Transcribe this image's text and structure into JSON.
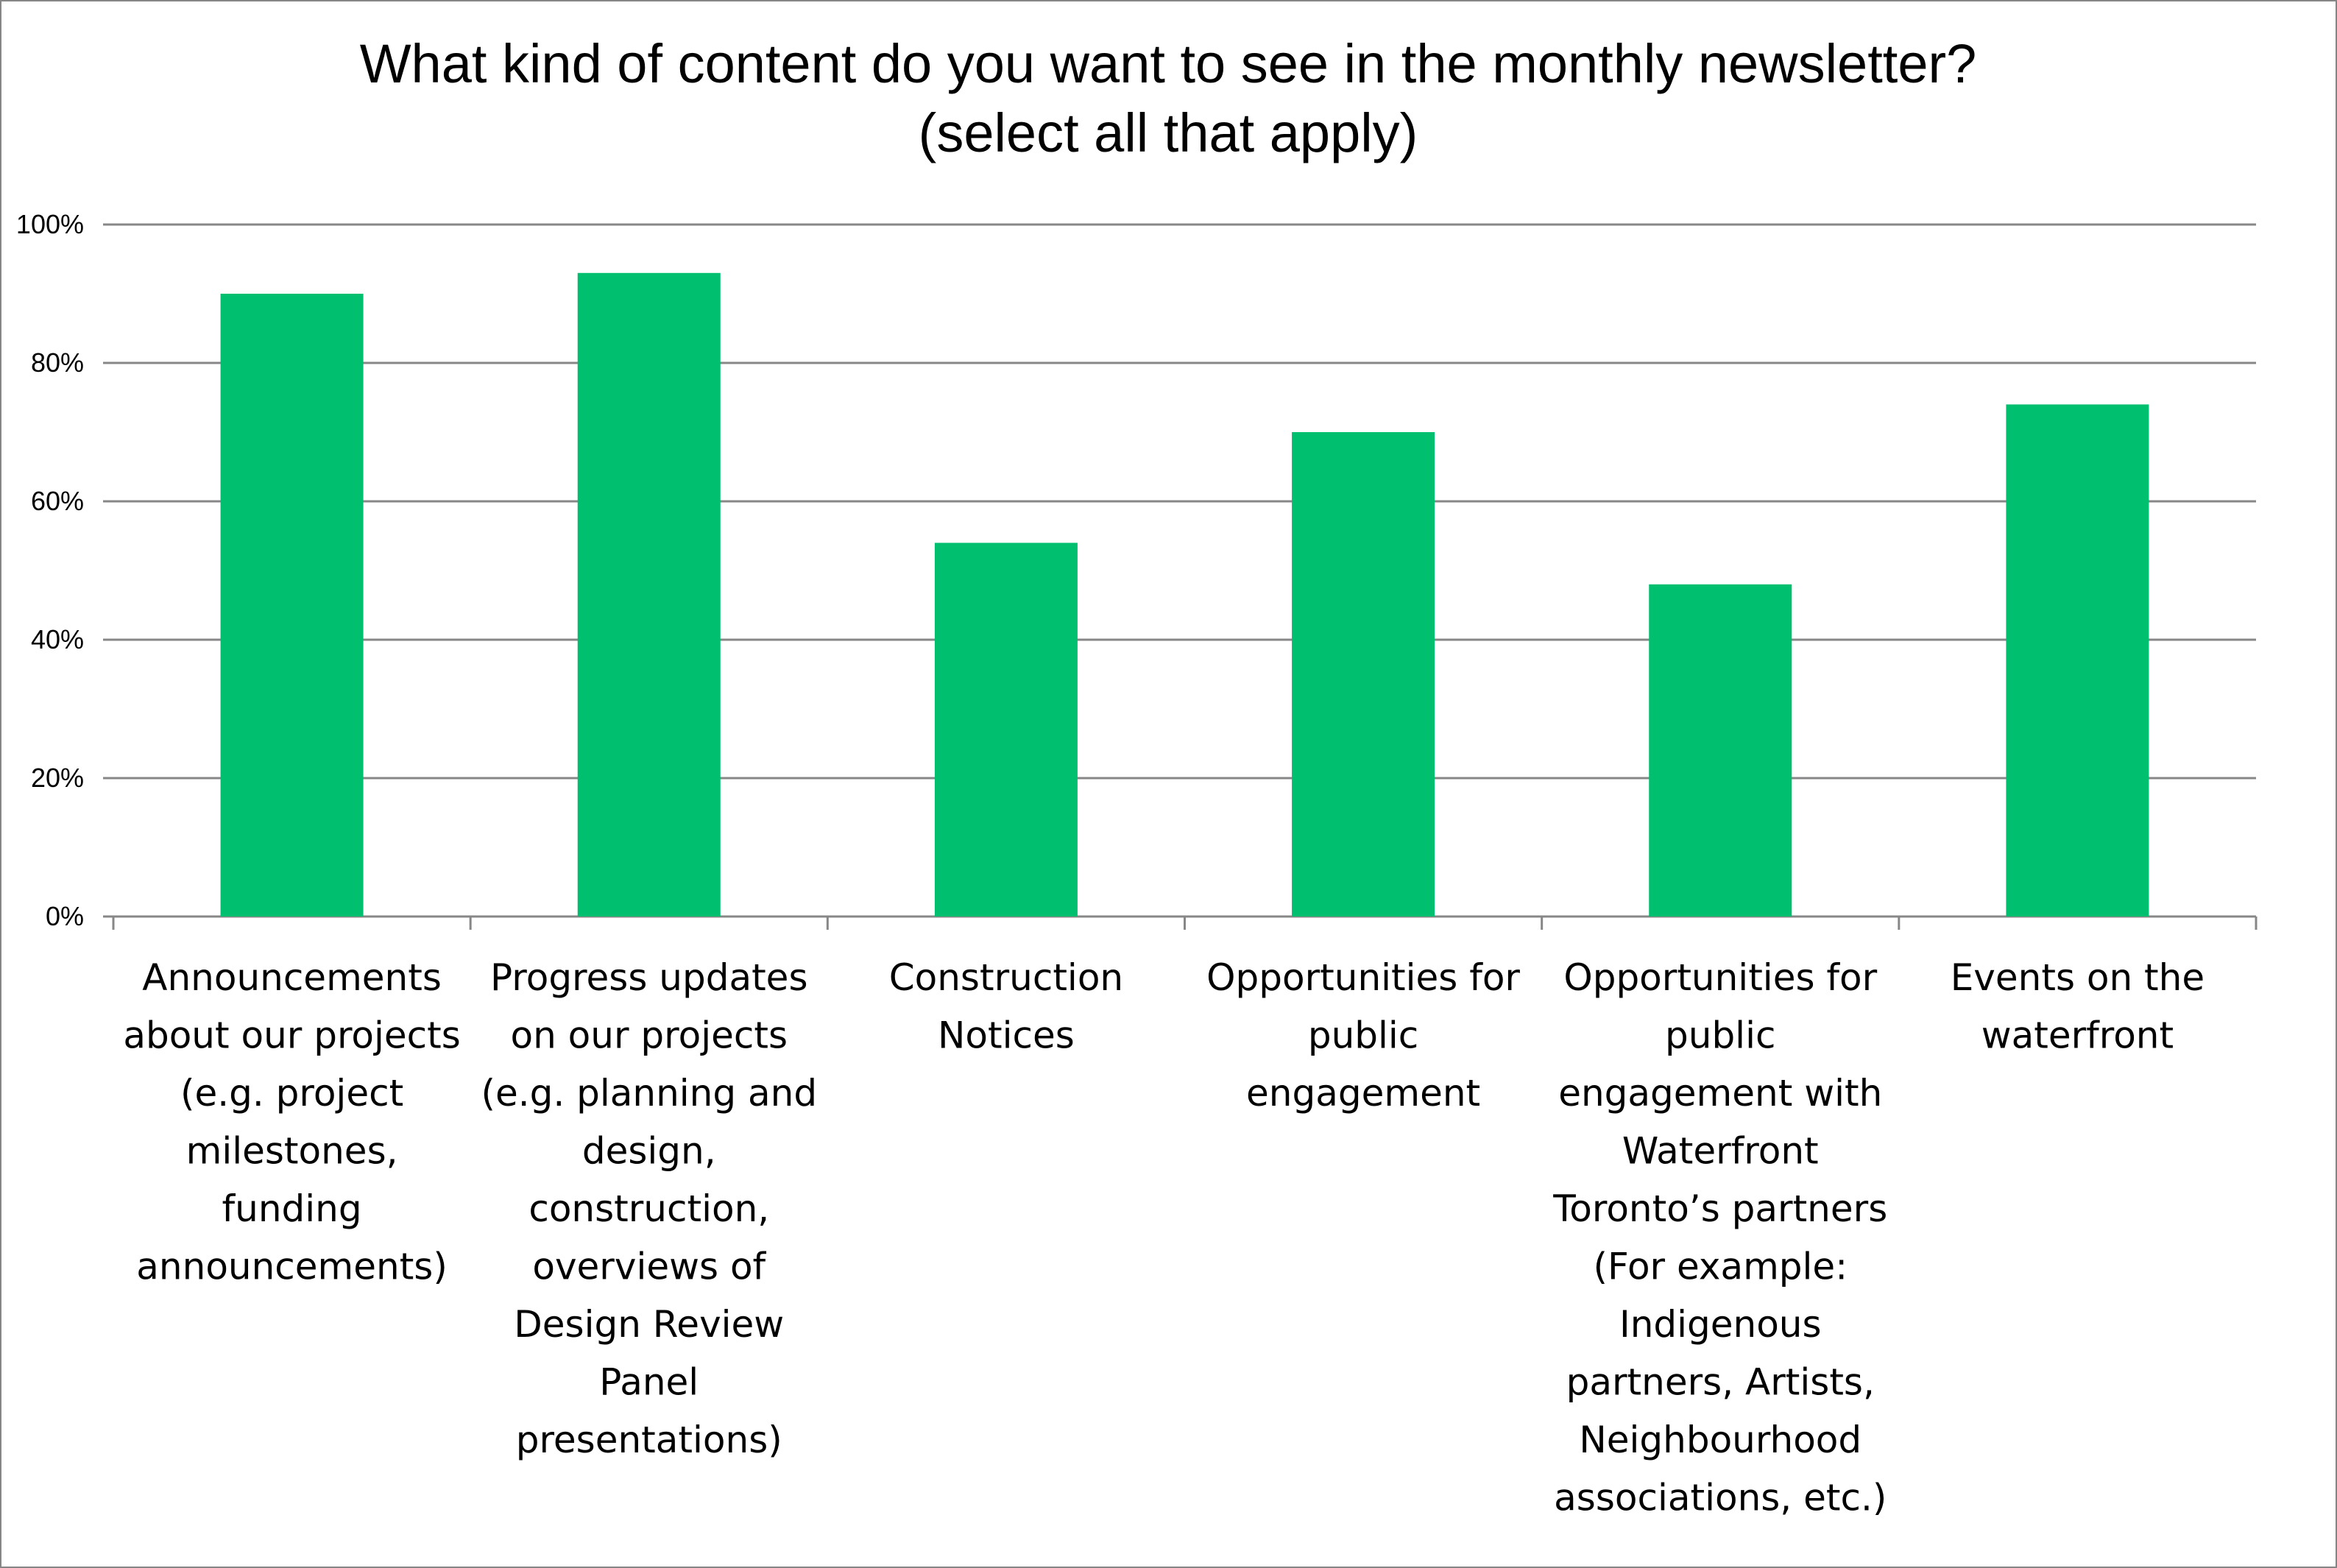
{
  "chart_data": {
    "type": "bar",
    "title": "What kind of content do you want to see in the monthly newsletter?",
    "subtitle": "(select all that apply)",
    "xlabel": "",
    "ylabel": "",
    "ylim": [
      0,
      100
    ],
    "y_ticks": [
      "0%",
      "20%",
      "40%",
      "60%",
      "80%",
      "100%"
    ],
    "grid": true,
    "legend": "none",
    "bar_color": "#00BF6F",
    "categories": [
      [
        "Announcements",
        "about our projects",
        "(e.g. project",
        "milestones,",
        "funding",
        "announcements)"
      ],
      [
        "Progress updates",
        "on our projects",
        "(e.g. planning and",
        "design,",
        "construction,",
        "overviews of",
        "Design Review",
        "Panel",
        "presentations)"
      ],
      [
        "Construction",
        "Notices"
      ],
      [
        "Opportunities for",
        "public",
        "engagement"
      ],
      [
        "Opportunities for",
        "public",
        "engagement with",
        "Waterfront",
        "Toronto’s partners",
        "(For example:",
        "Indigenous",
        "partners, Artists,",
        "Neighbourhood",
        "associations, etc.)"
      ],
      [
        "Events on the",
        "waterfront"
      ]
    ],
    "values": [
      90,
      93,
      54,
      70,
      48,
      74
    ]
  }
}
